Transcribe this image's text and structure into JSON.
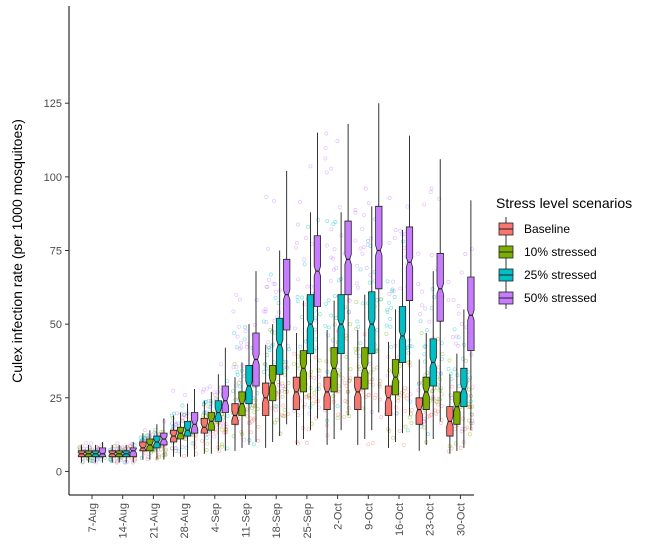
{
  "chart_data": {
    "type": "box",
    "title": "",
    "xlabel": "",
    "ylabel": "Culex infection rate (per 1000 mosquitoes)",
    "ylim": [
      -8,
      158
    ],
    "yticks": [
      0,
      25,
      50,
      75,
      100,
      125
    ],
    "categories": [
      "7-Aug",
      "14-Aug",
      "21-Aug",
      "28-Aug",
      "4-Sep",
      "11-Sep",
      "18-Sep",
      "25-Sep",
      "2-Oct",
      "9-Oct",
      "16-Oct",
      "23-Oct",
      "30-Oct"
    ],
    "grid": false,
    "legend": {
      "title": "Stress level scenarios",
      "position": "right"
    },
    "series": [
      {
        "name": "Baseline",
        "color": "#F8766D",
        "boxes": [
          {
            "q1": 5,
            "median": 6,
            "q3": 7,
            "whisker_low": 3,
            "whisker_high": 9
          },
          {
            "q1": 5,
            "median": 6,
            "q3": 7,
            "whisker_low": 3,
            "whisker_high": 9
          },
          {
            "q1": 7,
            "median": 8,
            "q3": 10,
            "whisker_low": 4,
            "whisker_high": 13
          },
          {
            "q1": 10,
            "median": 12,
            "q3": 14,
            "whisker_low": 5,
            "whisker_high": 19
          },
          {
            "q1": 13,
            "median": 15,
            "q3": 18,
            "whisker_low": 6,
            "whisker_high": 24
          },
          {
            "q1": 16,
            "median": 19,
            "q3": 23,
            "whisker_low": 7,
            "whisker_high": 32
          },
          {
            "q1": 19,
            "median": 25,
            "q3": 30,
            "whisker_low": 8,
            "whisker_high": 43
          },
          {
            "q1": 21,
            "median": 27,
            "q3": 32,
            "whisker_low": 9,
            "whisker_high": 47
          },
          {
            "q1": 21,
            "median": 27,
            "q3": 32,
            "whisker_low": 9,
            "whisker_high": 48
          },
          {
            "q1": 21,
            "median": 27,
            "q3": 32,
            "whisker_low": 9,
            "whisker_high": 48
          },
          {
            "q1": 19,
            "median": 25,
            "q3": 29,
            "whisker_low": 8,
            "whisker_high": 44
          },
          {
            "q1": 16,
            "median": 21,
            "q3": 25,
            "whisker_low": 7,
            "whisker_high": 38
          },
          {
            "q1": 12,
            "median": 17,
            "q3": 22,
            "whisker_low": 6,
            "whisker_high": 33
          }
        ]
      },
      {
        "name": "10% stressed",
        "color": "#7CAE00",
        "boxes": [
          {
            "q1": 5,
            "median": 6,
            "q3": 7,
            "whisker_low": 3,
            "whisker_high": 9
          },
          {
            "q1": 5,
            "median": 6,
            "q3": 7,
            "whisker_low": 3,
            "whisker_high": 9
          },
          {
            "q1": 7,
            "median": 9,
            "q3": 11,
            "whisker_low": 4,
            "whisker_high": 14
          },
          {
            "q1": 11,
            "median": 13,
            "q3": 15,
            "whisker_low": 5,
            "whisker_high": 20
          },
          {
            "q1": 14,
            "median": 17,
            "q3": 20,
            "whisker_low": 6,
            "whisker_high": 27
          },
          {
            "q1": 19,
            "median": 23,
            "q3": 27,
            "whisker_low": 8,
            "whisker_high": 37
          },
          {
            "q1": 24,
            "median": 30,
            "q3": 36,
            "whisker_low": 10,
            "whisker_high": 50
          },
          {
            "q1": 27,
            "median": 35,
            "q3": 41,
            "whisker_low": 11,
            "whisker_high": 58
          },
          {
            "q1": 27,
            "median": 35,
            "q3": 42,
            "whisker_low": 11,
            "whisker_high": 58
          },
          {
            "q1": 28,
            "median": 35,
            "q3": 42,
            "whisker_low": 11,
            "whisker_high": 60
          },
          {
            "q1": 26,
            "median": 32,
            "q3": 38,
            "whisker_low": 10,
            "whisker_high": 55
          },
          {
            "q1": 21,
            "median": 27,
            "q3": 32,
            "whisker_low": 9,
            "whisker_high": 47
          },
          {
            "q1": 16,
            "median": 22,
            "q3": 27,
            "whisker_low": 7,
            "whisker_high": 40
          }
        ]
      },
      {
        "name": "25% stressed",
        "color": "#00BFC4",
        "boxes": [
          {
            "q1": 5,
            "median": 6,
            "q3": 7,
            "whisker_low": 3,
            "whisker_high": 9
          },
          {
            "q1": 5,
            "median": 6,
            "q3": 7,
            "whisker_low": 3,
            "whisker_high": 9
          },
          {
            "q1": 8,
            "median": 10,
            "q3": 12,
            "whisker_low": 4,
            "whisker_high": 16
          },
          {
            "q1": 12,
            "median": 14,
            "q3": 17,
            "whisker_low": 5,
            "whisker_high": 23
          },
          {
            "q1": 17,
            "median": 20,
            "q3": 24,
            "whisker_low": 7,
            "whisker_high": 33
          },
          {
            "q1": 23,
            "median": 29,
            "q3": 36,
            "whisker_low": 9,
            "whisker_high": 50
          },
          {
            "q1": 33,
            "median": 43,
            "q3": 52,
            "whisker_low": 12,
            "whisker_high": 75
          },
          {
            "q1": 40,
            "median": 50,
            "q3": 60,
            "whisker_low": 14,
            "whisker_high": 88
          },
          {
            "q1": 40,
            "median": 50,
            "q3": 60,
            "whisker_low": 14,
            "whisker_high": 88
          },
          {
            "q1": 40,
            "median": 50,
            "q3": 61,
            "whisker_low": 14,
            "whisker_high": 90
          },
          {
            "q1": 37,
            "median": 46,
            "q3": 56,
            "whisker_low": 13,
            "whisker_high": 82
          },
          {
            "q1": 29,
            "median": 37,
            "q3": 45,
            "whisker_low": 11,
            "whisker_high": 68
          },
          {
            "q1": 22,
            "median": 28,
            "q3": 35,
            "whisker_low": 8,
            "whisker_high": 55
          }
        ]
      },
      {
        "name": "50% stressed",
        "color": "#C77CFF",
        "boxes": [
          {
            "q1": 5,
            "median": 6,
            "q3": 8,
            "whisker_low": 3,
            "whisker_high": 10
          },
          {
            "q1": 5,
            "median": 7,
            "q3": 8,
            "whisker_low": 3,
            "whisker_high": 10
          },
          {
            "q1": 9,
            "median": 11,
            "q3": 13,
            "whisker_low": 4,
            "whisker_high": 18
          },
          {
            "q1": 13,
            "median": 16,
            "q3": 20,
            "whisker_low": 5,
            "whisker_high": 28
          },
          {
            "q1": 20,
            "median": 24,
            "q3": 29,
            "whisker_low": 7,
            "whisker_high": 42
          },
          {
            "q1": 29,
            "median": 38,
            "q3": 47,
            "whisker_low": 10,
            "whisker_high": 68
          },
          {
            "q1": 48,
            "median": 60,
            "q3": 72,
            "whisker_low": 16,
            "whisker_high": 102
          },
          {
            "q1": 56,
            "median": 68,
            "q3": 80,
            "whisker_low": 18,
            "whisker_high": 115
          },
          {
            "q1": 60,
            "median": 72,
            "q3": 85,
            "whisker_low": 19,
            "whisker_high": 118
          },
          {
            "q1": 62,
            "median": 75,
            "q3": 90,
            "whisker_low": 20,
            "whisker_high": 125
          },
          {
            "q1": 58,
            "median": 71,
            "q3": 83,
            "whisker_low": 19,
            "whisker_high": 114
          },
          {
            "q1": 51,
            "median": 62,
            "q3": 74,
            "whisker_low": 17,
            "whisker_high": 106
          },
          {
            "q1": 41,
            "median": 53,
            "q3": 66,
            "whisker_low": 14,
            "whisker_high": 92
          }
        ]
      }
    ]
  }
}
